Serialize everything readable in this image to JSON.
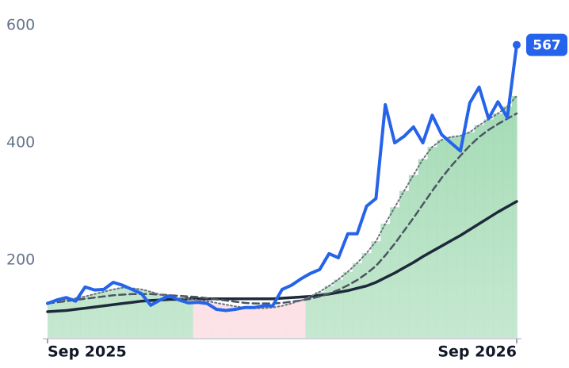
{
  "chart_data": {
    "type": "line",
    "x": [
      0,
      1,
      2,
      3,
      4,
      5,
      6,
      7,
      8,
      9,
      10,
      11,
      12,
      13,
      14,
      15,
      16,
      17,
      18,
      19,
      20,
      21,
      22,
      23,
      24,
      25,
      26,
      27,
      28,
      29,
      30,
      31,
      32,
      33,
      34,
      35,
      36,
      37,
      38,
      39,
      40,
      41,
      42,
      43,
      44,
      45,
      46,
      47,
      48,
      49,
      50
    ],
    "xlim": [
      0,
      50
    ],
    "xticks": [
      {
        "value": 0,
        "label": "Sep 2025"
      },
      {
        "value": 50,
        "label": "Sep 2026"
      }
    ],
    "ylim": [
      66,
      630
    ],
    "yticks": [
      200,
      400,
      600
    ],
    "series": [
      {
        "color": "#2563eb",
        "style": "solid",
        "width": 4,
        "values": [
          126,
          132,
          136,
          130,
          154,
          149,
          150,
          162,
          157,
          150,
          143,
          123,
          132,
          139,
          132,
          127,
          128,
          126,
          116,
          114,
          116,
          119,
          119,
          122,
          122,
          150,
          157,
          168,
          177,
          184,
          211,
          204,
          245,
          245,
          292,
          305,
          465,
          400,
          411,
          427,
          400,
          447,
          414,
          400,
          386,
          468,
          495,
          441,
          470,
          443,
          567
        ]
      },
      {
        "color": "#6b7280",
        "style": "dotted",
        "width": 2,
        "values": [
          128,
          130,
          132,
          135,
          138,
          142,
          146,
          150,
          153,
          152,
          150,
          146,
          141,
          137,
          135,
          134,
          132,
          130,
          127,
          124,
          121,
          119,
          118,
          118,
          119,
          122,
          126,
          131,
          138,
          146,
          156,
          167,
          180,
          195,
          212,
          232,
          262,
          290,
          318,
          345,
          372,
          393,
          405,
          410,
          412,
          418,
          430,
          440,
          450,
          462,
          480
        ]
      },
      {
        "color": "#4b5563",
        "style": "dashed",
        "width": 2.5,
        "values": [
          126,
          128,
          130,
          132,
          134,
          136,
          138,
          140,
          141,
          142,
          142,
          142,
          141,
          140,
          139,
          138,
          137,
          135,
          133,
          131,
          129,
          127,
          126,
          126,
          126,
          127,
          129,
          131,
          134,
          138,
          143,
          149,
          157,
          166,
          177,
          190,
          208,
          228,
          250,
          272,
          295,
          318,
          340,
          360,
          378,
          395,
          410,
          422,
          432,
          441,
          450
        ]
      },
      {
        "color": "#1e293b",
        "style": "solid",
        "width": 3.5,
        "values": [
          112,
          113,
          114,
          116,
          118,
          120,
          122,
          124,
          126,
          128,
          130,
          131,
          132,
          133,
          133,
          134,
          134,
          134,
          134,
          134,
          134,
          134,
          134,
          134,
          134,
          135,
          136,
          137,
          138,
          140,
          142,
          145,
          148,
          152,
          156,
          162,
          170,
          178,
          187,
          196,
          206,
          215,
          224,
          233,
          242,
          252,
          262,
          272,
          282,
          291,
          300
        ]
      }
    ],
    "area_up_color": "#86cf9c",
    "area_down_color": "#f9c4cf",
    "last_label_color": "#2563eb"
  }
}
